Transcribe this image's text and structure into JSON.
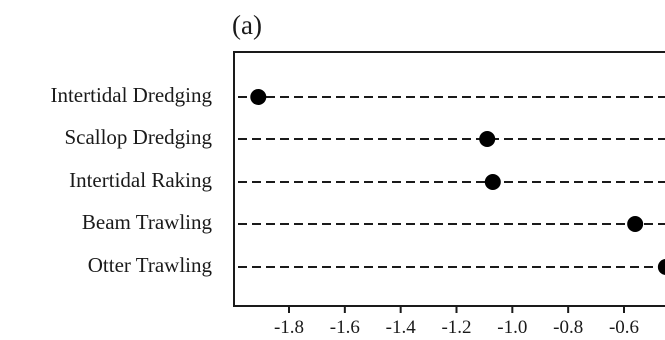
{
  "panel_label": "(a)",
  "chart_data": {
    "type": "scatter",
    "style": "dot-plot",
    "title": "",
    "xlabel": "",
    "ylabel": "",
    "categories": [
      "Intertidal Dredging",
      "Scallop Dredging",
      "Intertidal Raking",
      "Beam Trawling",
      "Otter Trawling"
    ],
    "values": [
      -1.91,
      -1.09,
      -1.07,
      -0.56,
      -0.45
    ],
    "x_ticks": [
      "-1.8",
      "-1.6",
      "-1.4",
      "-1.2",
      "-1.0",
      "-0.8",
      "-0.6"
    ],
    "grid": false,
    "legend": "none",
    "colors": {
      "marker": "#000000",
      "guide": "#1a1a1a",
      "axis": "#1a1a1a"
    }
  }
}
